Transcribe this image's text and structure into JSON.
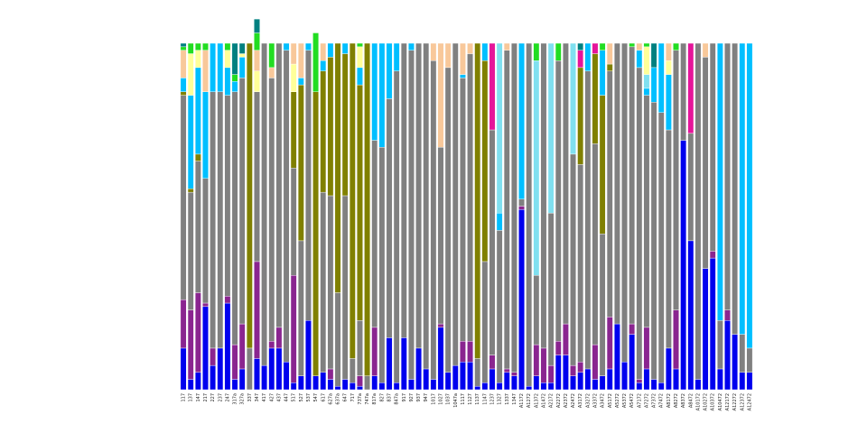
{
  "chart_data": {
    "type": "bar",
    "stacked": true,
    "normalized": true,
    "ylim": [
      0,
      1
    ],
    "grid": false,
    "legend": "none",
    "axes_visible": false,
    "categories": [
      "117",
      "137",
      "147",
      "217",
      "227",
      "237",
      "247",
      "317a",
      "327a",
      "337",
      "347",
      "417",
      "427",
      "437",
      "447",
      "517",
      "527",
      "537",
      "547",
      "617",
      "627a",
      "637a",
      "647",
      "717",
      "737a",
      "747a",
      "817a",
      "827",
      "837",
      "847a",
      "917",
      "927",
      "937",
      "947",
      "1017",
      "1027",
      "1037",
      "1047a",
      "1117",
      "1127",
      "1137",
      "1147",
      "1237",
      "1327",
      "1337",
      "1347",
      "A1172",
      "A1272",
      "A1372",
      "A1472",
      "A2172",
      "A2272",
      "A2372",
      "A2472",
      "A3172",
      "A3272",
      "A3372",
      "A3472",
      "A5172",
      "A5272",
      "A5372",
      "A5472",
      "A7172",
      "A7272",
      "A7372",
      "A7472",
      "A8172",
      "A8272",
      "A8372",
      "A8472",
      "A10172",
      "A10272",
      "A10372",
      "A10472",
      "A12172",
      "A12272",
      "A12372",
      "A12472"
    ],
    "series": [
      {
        "color": "#0000ee",
        "values": [
          0.12,
          0.03,
          0.05,
          0.24,
          0.07,
          0.12,
          0.25,
          0.03,
          0.06,
          0.0,
          0.09,
          0.07,
          0.12,
          0.12,
          0.08,
          0.02,
          0.04,
          0.2,
          0.04,
          0.05,
          0.03,
          0.01,
          0.03,
          0.02,
          0.01,
          0.0,
          0.04,
          0.02,
          0.15,
          0.02,
          0.15,
          0.03,
          0.12,
          0.06,
          0.03,
          0.18,
          0.05,
          0.07,
          0.08,
          0.08,
          0.01,
          0.02,
          0.06,
          0.02,
          0.05,
          0.04,
          0.52,
          0.01,
          0.04,
          0.02,
          0.02,
          0.1,
          0.1,
          0.04,
          0.05,
          0.06,
          0.03,
          0.04,
          0.06,
          0.19,
          0.08,
          0.16,
          0.02,
          0.06,
          0.03,
          0.02,
          0.12,
          0.06,
          0.72,
          0.43,
          0.03,
          0.35,
          0.38,
          0.06,
          0.2,
          0.16,
          0.05,
          0.05
        ]
      },
      {
        "color": "#8a2590",
        "values": [
          0.14,
          0.2,
          0.23,
          0.01,
          0.05,
          0.0,
          0.02,
          0.1,
          0.13,
          0.0,
          0.28,
          0.0,
          0.02,
          0.06,
          0.0,
          0.31,
          0.0,
          0.0,
          0.0,
          0.0,
          0.03,
          0.0,
          0.0,
          0.0,
          0.03,
          0.0,
          0.14,
          0.0,
          0.0,
          0.0,
          0.0,
          0.0,
          0.0,
          0.0,
          0.0,
          0.01,
          0.0,
          0.0,
          0.06,
          0.06,
          0.0,
          0.0,
          0.04,
          0.0,
          0.01,
          0.01,
          0.01,
          0.0,
          0.09,
          0.1,
          0.05,
          0.04,
          0.09,
          0.03,
          0.03,
          0.0,
          0.1,
          0.0,
          0.15,
          0.0,
          0.0,
          0.03,
          0.01,
          0.12,
          0.0,
          0.0,
          0.0,
          0.17,
          0.0,
          0.0,
          0.0,
          0.0,
          0.02,
          0.0,
          0.03,
          0.0,
          0.0,
          0.0
        ]
      },
      {
        "color": "#808080",
        "values": [
          0.48,
          0.34,
          0.22,
          0.22,
          0.5,
          0.56,
          0.35,
          0.65,
          0.35,
          0.05,
          0.49,
          0.08,
          0.52,
          0.5,
          0.8,
          0.04,
          0.04,
          0.67,
          0.0,
          0.3,
          0.06,
          0.26,
          0.31,
          0.0,
          0.0,
          0.02,
          0.33,
          0.02,
          0.0,
          0.49,
          0.0,
          0.0,
          0.0,
          0.0,
          0.0,
          0.21,
          0.5,
          0.54,
          0.0,
          0.0,
          0.06,
          0.0,
          0.0,
          0.0,
          0.0,
          0.0,
          0.0,
          0.0,
          0.0,
          0.0,
          0.0,
          0.0,
          0.0,
          0.0,
          0.0,
          0.0,
          0.0,
          0.0,
          0.0,
          0.0,
          0.0,
          0.0,
          0.0,
          0.0,
          0.0,
          0.0,
          0.0,
          0.0,
          0.0,
          0.0,
          0.0,
          0.0,
          0.0,
          0.0,
          0.0,
          0.0,
          0.0,
          0.0
        ]
      },
      {
        "color": "#808000",
        "values": [
          0.01,
          0.01,
          0.02,
          0.0,
          0.0,
          0.0,
          0.0,
          0.0,
          0.0,
          0.88,
          0.0,
          0.0,
          0.0,
          0.0,
          0.0,
          0.22,
          0.45,
          0.0,
          0.82,
          0.35,
          0.4,
          0.72,
          0.41,
          0.91,
          0.68,
          0.96,
          0.0,
          0.0,
          0.0,
          0.0,
          0.0,
          0.0,
          0.0,
          0.0,
          0.0,
          0.0,
          0.0,
          0.0,
          0.0,
          0.0,
          0.91,
          0.58,
          0.0,
          0.0,
          0.0,
          0.0,
          0.0,
          0.0,
          0.0,
          0.0,
          0.0,
          0.0,
          0.0,
          0.0,
          0.28,
          0.0,
          0.26,
          0.4,
          0.02,
          0.0,
          0.0,
          0.0,
          0.0,
          0.0,
          0.0,
          0.0,
          0.0,
          0.0,
          0.0,
          0.0,
          0.0,
          0.0,
          0.0,
          0.0,
          0.0,
          0.0,
          0.0,
          0.0
        ]
      },
      {
        "color": "#00bfff",
        "values": [
          0.04,
          0.27,
          0.25,
          0.25,
          0.14,
          0.14,
          0.08,
          0.03,
          0.06,
          0.0,
          0.0,
          0.0,
          0.0,
          0.0,
          0.02,
          0.0,
          0.02,
          0.02,
          0.0,
          0.03,
          0.04,
          0.0,
          0.03,
          0.0,
          0.05,
          0.0,
          0.28,
          0.3,
          0.16,
          0.08,
          0.0,
          0.02,
          0.0,
          0.0,
          0.0,
          0.0,
          0.0,
          0.0,
          0.01,
          0.0,
          0.0,
          0.05,
          0.0,
          0.05,
          0.0,
          0.0,
          0.45,
          0.0,
          0.0,
          0.0,
          0.0,
          0.0,
          0.0,
          0.0,
          0.0,
          0.08,
          0.0,
          0.13,
          0.0,
          0.0,
          0.0,
          0.0,
          0.05,
          0.02,
          0.1,
          0.2,
          0.16,
          0.0,
          0.0,
          0.0,
          0.0,
          0.0,
          0.0,
          0.8,
          0.0,
          0.0,
          0.84,
          0.88
        ]
      },
      {
        "color": "#80e0f0",
        "values": [
          0.0,
          0.0,
          0.0,
          0.0,
          0.0,
          0.0,
          0.0,
          0.0,
          0.0,
          0.0,
          0.0,
          0.0,
          0.0,
          0.0,
          0.0,
          0.0,
          0.0,
          0.0,
          0.0,
          0.0,
          0.0,
          0.0,
          0.0,
          0.0,
          0.0,
          0.0,
          0.0,
          0.0,
          0.0,
          0.0,
          0.0,
          0.0,
          0.0,
          0.0,
          0.0,
          0.0,
          0.0,
          0.0,
          0.0,
          0.0,
          0.0,
          0.0,
          0.0,
          0.49,
          0.0,
          0.0,
          0.0,
          0.0,
          0.62,
          0.0,
          0.49,
          0.0,
          0.0,
          0.32,
          0.0,
          0.0,
          0.0,
          0.0,
          0.0,
          0.0,
          0.0,
          0.0,
          0.0,
          0.04,
          0.0,
          0.0,
          0.0,
          0.0,
          0.0,
          0.0,
          0.0,
          0.0,
          0.0,
          0.0,
          0.0,
          0.0,
          0.0,
          0.0
        ]
      },
      {
        "color": "#ffff99",
        "values": [
          0.0,
          0.12,
          0.05,
          0.0,
          0.0,
          0.0,
          0.05,
          0.0,
          0.01,
          0.0,
          0.06,
          0.0,
          0.0,
          0.0,
          0.0,
          0.08,
          0.0,
          0.0,
          0.0,
          0.0,
          0.0,
          0.0,
          0.0,
          0.0,
          0.06,
          0.0,
          0.0,
          0.0,
          0.0,
          0.0,
          0.0,
          0.0,
          0.0,
          0.0,
          0.0,
          0.0,
          0.0,
          0.0,
          0.0,
          0.0,
          0.0,
          0.0,
          0.0,
          0.0,
          0.0,
          0.0,
          0.0,
          0.0,
          0.0,
          0.0,
          0.0,
          0.0,
          0.0,
          0.0,
          0.0,
          0.0,
          0.0,
          0.0,
          0.0,
          0.0,
          0.0,
          0.0,
          0.0,
          0.08,
          0.0,
          0.0,
          0.04,
          0.0,
          0.0,
          0.0,
          0.0,
          0.0,
          0.0,
          0.0,
          0.0,
          0.0,
          0.0,
          0.0
        ]
      },
      {
        "color": "#f8c89a",
        "values": [
          0.08,
          0.0,
          0.0,
          0.12,
          0.0,
          0.0,
          0.0,
          0.0,
          0.0,
          0.0,
          0.06,
          0.0,
          0.03,
          0.0,
          0.0,
          0.06,
          0.1,
          0.0,
          0.0,
          0.05,
          0.0,
          0.0,
          0.0,
          0.0,
          0.0,
          0.0,
          0.0,
          0.0,
          0.0,
          0.0,
          0.0,
          0.0,
          0.0,
          0.0,
          0.05,
          0.3,
          0.07,
          0.0,
          0.09,
          0.03,
          0.0,
          0.0,
          0.0,
          0.0,
          0.02,
          0.0,
          0.0,
          0.0,
          0.0,
          0.0,
          0.0,
          0.0,
          0.0,
          0.0,
          0.0,
          0.0,
          0.0,
          0.0,
          0.06,
          0.0,
          0.0,
          0.0,
          0.02,
          0.0,
          0.0,
          0.0,
          0.05,
          0.0,
          0.0,
          0.0,
          0.0,
          0.04,
          0.0,
          0.0,
          0.0,
          0.0,
          0.0,
          0.0
        ]
      },
      {
        "color": "#e5159a",
        "values": [
          0.0,
          0.0,
          0.0,
          0.0,
          0.0,
          0.0,
          0.0,
          0.0,
          0.0,
          0.0,
          0.0,
          0.0,
          0.0,
          0.0,
          0.0,
          0.0,
          0.0,
          0.0,
          0.0,
          0.0,
          0.0,
          0.0,
          0.0,
          0.0,
          0.0,
          0.0,
          0.0,
          0.0,
          0.0,
          0.0,
          0.0,
          0.0,
          0.0,
          0.0,
          0.0,
          0.0,
          0.0,
          0.0,
          0.0,
          0.0,
          0.0,
          0.0,
          0.25,
          0.0,
          0.0,
          0.0,
          0.0,
          0.0,
          0.0,
          0.0,
          0.0,
          0.0,
          0.0,
          0.0,
          0.05,
          0.0,
          0.03,
          0.0,
          0.0,
          0.0,
          0.0,
          0.0,
          0.0,
          0.0,
          0.0,
          0.0,
          0.0,
          0.0,
          0.0,
          0.26,
          0.0,
          0.0,
          0.0,
          0.0,
          0.0,
          0.0,
          0.0,
          0.0
        ]
      },
      {
        "color": "#22dd22",
        "values": [
          0.01,
          0.03,
          0.02,
          0.02,
          0.0,
          0.0,
          0.02,
          0.02,
          0.0,
          0.0,
          0.05,
          0.0,
          0.07,
          0.0,
          0.0,
          0.0,
          0.0,
          0.0,
          0.17,
          0.0,
          0.0,
          0.0,
          0.0,
          0.0,
          0.01,
          0.0,
          0.0,
          0.0,
          0.0,
          0.0,
          0.0,
          0.0,
          0.0,
          0.0,
          0.0,
          0.0,
          0.0,
          0.0,
          0.0,
          0.0,
          0.0,
          0.0,
          0.0,
          0.0,
          0.0,
          0.0,
          0.0,
          0.0,
          0.05,
          0.0,
          0.0,
          0.05,
          0.0,
          0.0,
          0.0,
          0.0,
          0.0,
          0.02,
          0.0,
          0.0,
          0.0,
          0.01,
          0.0,
          0.01,
          0.0,
          0.0,
          0.0,
          0.02,
          0.0,
          0.0,
          0.0,
          0.0,
          0.0,
          0.0,
          0.0,
          0.0,
          0.0,
          0.0
        ]
      },
      {
        "color": "#008080",
        "values": [
          0.01,
          0.0,
          0.0,
          0.0,
          0.0,
          0.0,
          0.0,
          0.09,
          0.03,
          0.0,
          0.04,
          0.0,
          0.0,
          0.0,
          0.0,
          0.0,
          0.0,
          0.0,
          0.0,
          0.0,
          0.0,
          0.0,
          0.0,
          0.0,
          0.0,
          0.0,
          0.0,
          0.0,
          0.0,
          0.0,
          0.0,
          0.0,
          0.0,
          0.0,
          0.0,
          0.0,
          0.0,
          0.0,
          0.0,
          0.0,
          0.0,
          0.0,
          0.0,
          0.0,
          0.0,
          0.0,
          0.0,
          0.0,
          0.0,
          0.0,
          0.0,
          0.0,
          0.0,
          0.0,
          0.02,
          0.0,
          0.0,
          0.0,
          0.0,
          0.0,
          0.0,
          0.0,
          0.0,
          0.0,
          0.07,
          0.0,
          0.0,
          0.0,
          0.0,
          0.0,
          0.0,
          0.0,
          0.0,
          0.0,
          0.0,
          0.0,
          0.0,
          0.0
        ]
      }
    ]
  }
}
